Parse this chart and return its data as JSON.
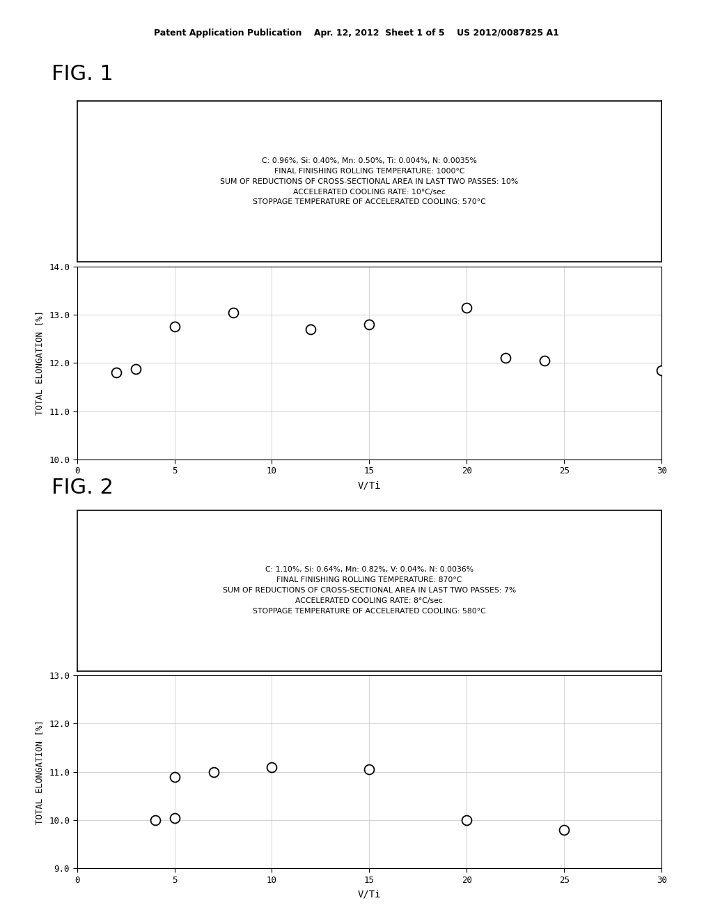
{
  "fig1": {
    "title_lines": [
      "C: 0.96%, Si: 0.40%, Mn: 0.50%, Ti: 0.004%, N: 0.0035%",
      "FINAL FINISHING ROLLING TEMPERATURE: 1000°C",
      "SUM OF REDUCTIONS OF CROSS-SECTIONAL AREA IN LAST TWO PASSES: 10%",
      "ACCELERATED COOLING RATE: 10°C/sec",
      "STOPPAGE TEMPERATURE OF ACCELERATED COOLING: 570°C"
    ],
    "xlabel": "V/Ti",
    "ylabel": "TOTAL ELONGATION [%]",
    "xlim": [
      0,
      30
    ],
    "ylim": [
      10.0,
      14.0
    ],
    "xticks": [
      0,
      5,
      10,
      15,
      20,
      25,
      30
    ],
    "yticks": [
      10.0,
      11.0,
      12.0,
      13.0,
      14.0
    ],
    "data_x": [
      2,
      3,
      5,
      8,
      12,
      15,
      20,
      22,
      24,
      30
    ],
    "data_y": [
      11.8,
      11.87,
      12.75,
      13.05,
      12.7,
      12.8,
      13.15,
      12.1,
      12.05,
      11.85
    ],
    "fig_label": "FIG. 1"
  },
  "fig2": {
    "title_lines": [
      "C: 1.10%, Si: 0.64%, Mn: 0.82%, V: 0.04%, N: 0.0036%",
      "FINAL FINISHING ROLLING TEMPERATURE: 870°C",
      "SUM OF REDUCTIONS OF CROSS-SECTIONAL AREA IN LAST TWO PASSES: 7%",
      "ACCELERATED COOLING RATE: 8°C/sec",
      "STOPPAGE TEMPERATURE OF ACCELERATED COOLING: 580°C"
    ],
    "xlabel": "V/Ti",
    "ylabel": "TOTAL ELONGATION [%]",
    "xlim": [
      0,
      30
    ],
    "ylim": [
      9.0,
      13.0
    ],
    "xticks": [
      0,
      5,
      10,
      15,
      20,
      25,
      30
    ],
    "yticks": [
      9.0,
      10.0,
      11.0,
      12.0,
      13.0
    ],
    "data_x": [
      4,
      5,
      5,
      7,
      10,
      15,
      20,
      25
    ],
    "data_y": [
      10.0,
      10.05,
      10.9,
      11.0,
      11.1,
      11.05,
      10.0,
      9.8
    ],
    "fig_label": "FIG. 2"
  },
  "header_text": "Patent Application Publication    Apr. 12, 2012  Sheet 1 of 5    US 2012/0087825 A1",
  "bg_color": "#ffffff",
  "text_color": "#000000",
  "marker_size": 10
}
